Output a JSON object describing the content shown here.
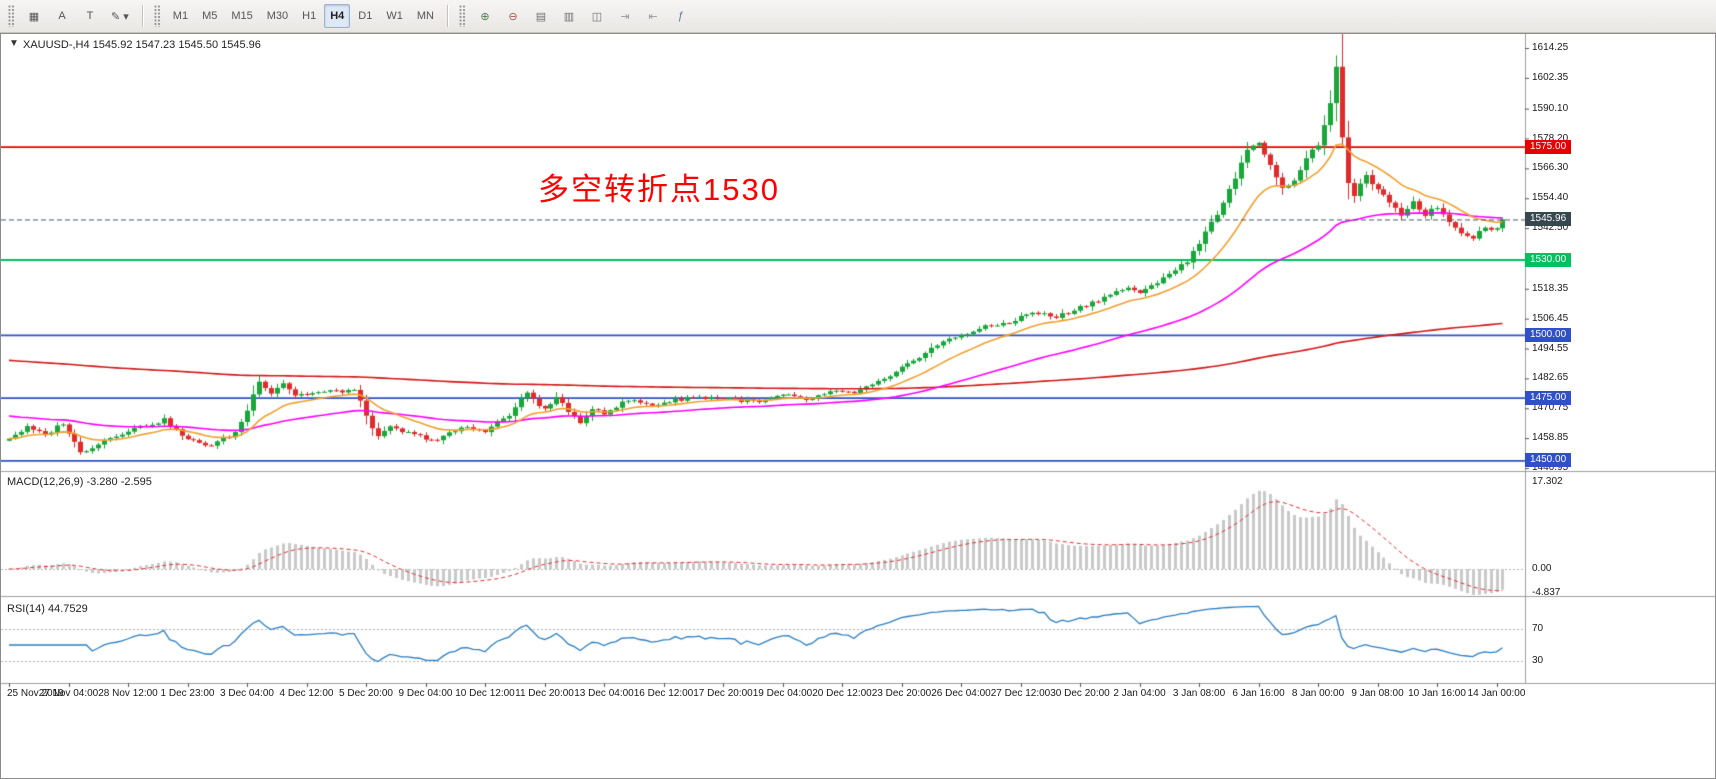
{
  "toolbar": {
    "left_icons": [
      {
        "name": "charts-grid-icon",
        "glyph": "▦"
      },
      {
        "name": "text-annotation-button",
        "glyph": "A"
      },
      {
        "name": "text-label-button",
        "glyph": "T"
      },
      {
        "name": "draw-tools-button",
        "glyph": "✎ ▾"
      }
    ],
    "timeframes": [
      {
        "name": "timeframe-m1",
        "label": "M1",
        "active": false
      },
      {
        "name": "timeframe-m5",
        "label": "M5",
        "active": false
      },
      {
        "name": "timeframe-m15",
        "label": "M15",
        "active": false
      },
      {
        "name": "timeframe-m30",
        "label": "M30",
        "active": false
      },
      {
        "name": "timeframe-h1",
        "label": "H1",
        "active": false
      },
      {
        "name": "timeframe-h4",
        "label": "H4",
        "active": true
      },
      {
        "name": "timeframe-d1",
        "label": "D1",
        "active": false
      },
      {
        "name": "timeframe-w1",
        "label": "W1",
        "active": false
      },
      {
        "name": "timeframe-mn",
        "label": "MN",
        "active": false
      }
    ],
    "right_icons": [
      {
        "name": "zoom-in-icon",
        "glyph": "⊕",
        "color": "#4e7e4e"
      },
      {
        "name": "zoom-out-icon",
        "glyph": "⊖",
        "color": "#9a5a48"
      },
      {
        "name": "tile-horizontal-icon",
        "glyph": "▤",
        "color": "#707070"
      },
      {
        "name": "tile-vertical-icon",
        "glyph": "▥",
        "color": "#707070"
      },
      {
        "name": "cascade-windows-icon",
        "glyph": "◫",
        "color": "#707070"
      },
      {
        "name": "auto-scroll-icon",
        "glyph": "⇥",
        "color": "#9a9a9a"
      },
      {
        "name": "chart-shift-icon",
        "glyph": "⇤",
        "color": "#9a9a9a"
      },
      {
        "name": "indicators-icon",
        "glyph": "ƒ",
        "color": "#5a7a9a"
      }
    ]
  },
  "main": {
    "header": "XAUUSD-,H4  1545.92 1547.23 1545.50 1545.96",
    "collapse_glyph": "▼"
  },
  "macd": {
    "header": "MACD(12,26,9) -3.280 -2.595"
  },
  "rsi": {
    "header": "RSI(14) 44.7529"
  },
  "annotation": {
    "text": "多空转折点1530",
    "color": "#ff0000"
  },
  "chart_data": {
    "type": "candlestick",
    "symbol": "XAUUSD-",
    "timeframe": "H4",
    "ohlc": {
      "open": 1545.92,
      "high": 1547.23,
      "low": 1545.5,
      "close": 1545.96
    },
    "bars": 252,
    "price_path": [
      [
        0,
        1459
      ],
      [
        3,
        1463
      ],
      [
        6,
        1460
      ],
      [
        9,
        1465
      ],
      [
        12,
        1453
      ],
      [
        16,
        1458
      ],
      [
        20,
        1462
      ],
      [
        26,
        1466
      ],
      [
        30,
        1458
      ],
      [
        34,
        1456
      ],
      [
        38,
        1461
      ],
      [
        40,
        1470
      ],
      [
        42,
        1482
      ],
      [
        44,
        1477
      ],
      [
        46,
        1481
      ],
      [
        48,
        1476
      ],
      [
        52,
        1477
      ],
      [
        58,
        1478
      ],
      [
        60,
        1468
      ],
      [
        62,
        1459
      ],
      [
        64,
        1463
      ],
      [
        68,
        1460
      ],
      [
        72,
        1458
      ],
      [
        76,
        1463
      ],
      [
        80,
        1462
      ],
      [
        84,
        1468
      ],
      [
        87,
        1477
      ],
      [
        90,
        1470
      ],
      [
        92,
        1475
      ],
      [
        94,
        1470
      ],
      [
        96,
        1464
      ],
      [
        98,
        1471
      ],
      [
        100,
        1469
      ],
      [
        104,
        1474
      ],
      [
        108,
        1472
      ],
      [
        114,
        1475
      ],
      [
        120,
        1475
      ],
      [
        126,
        1473
      ],
      [
        130,
        1476
      ],
      [
        134,
        1474
      ],
      [
        138,
        1477
      ],
      [
        142,
        1477
      ],
      [
        148,
        1483
      ],
      [
        152,
        1490
      ],
      [
        156,
        1496
      ],
      [
        160,
        1500
      ],
      [
        164,
        1503
      ],
      [
        168,
        1505
      ],
      [
        172,
        1509
      ],
      [
        176,
        1507
      ],
      [
        180,
        1511
      ],
      [
        184,
        1515
      ],
      [
        188,
        1519
      ],
      [
        190,
        1516
      ],
      [
        194,
        1523
      ],
      [
        198,
        1529
      ],
      [
        202,
        1545
      ],
      [
        204,
        1552
      ],
      [
        206,
        1563
      ],
      [
        208,
        1573
      ],
      [
        210,
        1577
      ],
      [
        212,
        1568
      ],
      [
        214,
        1558
      ],
      [
        216,
        1562
      ],
      [
        218,
        1570
      ],
      [
        220,
        1576
      ],
      [
        222,
        1592
      ],
      [
        223,
        1606
      ],
      [
        224,
        1578
      ],
      [
        225,
        1561
      ],
      [
        226,
        1556
      ],
      [
        228,
        1563
      ],
      [
        230,
        1558
      ],
      [
        232,
        1552
      ],
      [
        234,
        1548
      ],
      [
        236,
        1553
      ],
      [
        238,
        1548
      ],
      [
        240,
        1551
      ],
      [
        242,
        1545
      ],
      [
        244,
        1541
      ],
      [
        246,
        1539
      ],
      [
        248,
        1543
      ],
      [
        250,
        1542
      ],
      [
        251,
        1545.96
      ]
    ],
    "extremes": {
      "max_high": [
        223,
        1611.3
      ],
      "min_low": [
        12,
        1452.2
      ]
    },
    "price_levels": [
      {
        "value": 1575.0,
        "label": "1575.00",
        "color": "#e60000"
      },
      {
        "value": 1530.0,
        "label": "1530.00",
        "color": "#00c060"
      },
      {
        "value": 1500.0,
        "label": "1500.00",
        "color": "#3050c8"
      },
      {
        "value": 1475.0,
        "label": "1475.00",
        "color": "#3050c8"
      },
      {
        "value": 1450.0,
        "label": "1450.00",
        "color": "#3050c8"
      }
    ],
    "current_price": {
      "value": 1545.96,
      "label": "1545.96",
      "line_color": "#4a5a64",
      "badge_color": "#37474f"
    },
    "y_axis": {
      "ticks": [
        1614.25,
        1602.35,
        1590.1,
        1578.2,
        1566.3,
        1554.4,
        1542.5,
        1530.6,
        1518.35,
        1506.45,
        1494.55,
        1482.65,
        1470.75,
        1458.85,
        1446.95
      ]
    },
    "x_axis": {
      "labels": [
        "25 Nov 2019",
        "27 Nov 04:00",
        "28 Nov 12:00",
        "1 Dec 23:00",
        "3 Dec 04:00",
        "4 Dec 12:00",
        "5 Dec 20:00",
        "9 Dec 04:00",
        "10 Dec 12:00",
        "11 Dec 20:00",
        "13 Dec 04:00",
        "16 Dec 12:00",
        "17 Dec 20:00",
        "19 Dec 04:00",
        "20 Dec 12:00",
        "23 Dec 20:00",
        "26 Dec 04:00",
        "27 Dec 12:00",
        "30 Dec 20:00",
        "2 Jan 04:00",
        "3 Jan 08:00",
        "6 Jan 16:00",
        "8 Jan 00:00",
        "9 Jan 08:00",
        "10 Jan 16:00",
        "14 Jan 00:00"
      ]
    },
    "candle_colors": {
      "up": "#19a63a",
      "down": "#e12b2b"
    },
    "moving_averages": [
      {
        "name": "ma-slow-red",
        "period": 350,
        "color": "#d01818",
        "seed": 1490
      },
      {
        "name": "ma-mid-magenta",
        "period": 55,
        "color": "#ff00ff",
        "seed": 1468
      },
      {
        "name": "ma-fast-orange",
        "period": 14,
        "color": "#f0a030",
        "seed": null
      }
    ],
    "macd_indicator": {
      "fast": 12,
      "slow": 26,
      "signal": 9,
      "value": -3.28,
      "signal_value": -2.595,
      "ticks": [
        "17.302",
        "0.00",
        "-4.837"
      ],
      "histogram_color": "#c9c9c9",
      "signal_color": "#e03030"
    },
    "rsi_indicator": {
      "period": 14,
      "value": 44.7529,
      "levels": [
        70,
        30
      ],
      "line_color": "#2d7fc1"
    }
  }
}
